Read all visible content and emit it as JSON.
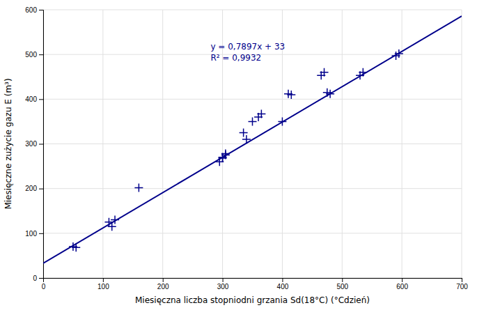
{
  "chart_data": {
    "type": "scatter",
    "xlabel": "Miesięczna liczba stopniodni grzania Sd(18°C) (°Cdzień)",
    "ylabel": "Miesięczne zużycie gazu E (m³)",
    "xlim": [
      0,
      700
    ],
    "ylim": [
      0,
      600
    ],
    "xticks": [
      0,
      100,
      200,
      300,
      400,
      500,
      600,
      700
    ],
    "yticks": [
      0,
      100,
      200,
      300,
      400,
      500,
      600
    ],
    "grid": true,
    "series": [
      {
        "type": "scatter",
        "color": "#00008B",
        "marker": "+",
        "x": [
          50,
          55,
          110,
          120,
          115,
          160,
          295,
          300,
          300,
          305,
          305,
          335,
          340,
          350,
          360,
          365,
          400,
          410,
          415,
          465,
          470,
          475,
          480,
          530,
          535,
          590,
          595
        ],
        "values": [
          70,
          68,
          125,
          130,
          115,
          202,
          260,
          268,
          270,
          275,
          278,
          325,
          310,
          350,
          360,
          367,
          350,
          412,
          410,
          453,
          460,
          415,
          412,
          453,
          460,
          497,
          502
        ]
      },
      {
        "type": "line",
        "color": "#00008B",
        "line_style": "solid",
        "x": [
          0,
          700
        ],
        "values": [
          33,
          585.79
        ]
      }
    ],
    "annotations": [
      "y = 0,7897x + 33",
      "R² = 0,9932"
    ]
  }
}
